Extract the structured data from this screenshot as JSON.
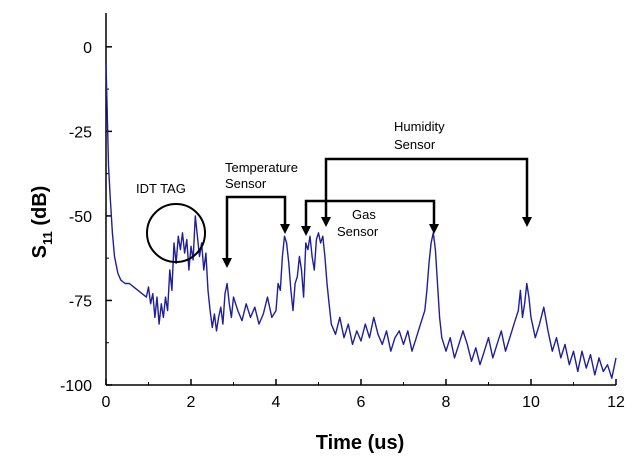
{
  "chart_data": {
    "type": "line",
    "xlabel": "Time (us)",
    "ylabel_main": "S",
    "ylabel_sub": "11",
    "ylabel_unit": " (dB)",
    "xlim": [
      0,
      12
    ],
    "ylim": [
      -100,
      10
    ],
    "xticks": [
      "0",
      "2",
      "4",
      "6",
      "8",
      "10",
      "12"
    ],
    "yticks": [
      "0",
      "-25",
      "-50",
      "-75",
      "-100"
    ],
    "grid": false,
    "series": [
      {
        "color": "#1f1f99",
        "points": [
          [
            0.0,
            -5
          ],
          [
            0.03,
            -20
          ],
          [
            0.06,
            -35
          ],
          [
            0.1,
            -45
          ],
          [
            0.15,
            -55
          ],
          [
            0.2,
            -62
          ],
          [
            0.28,
            -67
          ],
          [
            0.35,
            -69
          ],
          [
            0.45,
            -70
          ],
          [
            0.55,
            -70
          ],
          [
            0.65,
            -71
          ],
          [
            0.75,
            -72
          ],
          [
            0.85,
            -73
          ],
          [
            0.95,
            -74
          ],
          [
            1.0,
            -71
          ],
          [
            1.05,
            -76
          ],
          [
            1.1,
            -73
          ],
          [
            1.15,
            -80
          ],
          [
            1.2,
            -74
          ],
          [
            1.25,
            -82
          ],
          [
            1.3,
            -76
          ],
          [
            1.35,
            -80
          ],
          [
            1.4,
            -74
          ],
          [
            1.45,
            -78
          ],
          [
            1.5,
            -66
          ],
          [
            1.55,
            -72
          ],
          [
            1.6,
            -58
          ],
          [
            1.65,
            -64
          ],
          [
            1.7,
            -56
          ],
          [
            1.75,
            -60
          ],
          [
            1.8,
            -55
          ],
          [
            1.85,
            -61
          ],
          [
            1.9,
            -57
          ],
          [
            1.95,
            -66
          ],
          [
            2.0,
            -59
          ],
          [
            2.05,
            -63
          ],
          [
            2.1,
            -50
          ],
          [
            2.15,
            -56
          ],
          [
            2.2,
            -62
          ],
          [
            2.25,
            -58
          ],
          [
            2.3,
            -66
          ],
          [
            2.35,
            -61
          ],
          [
            2.4,
            -72
          ],
          [
            2.45,
            -78
          ],
          [
            2.5,
            -83
          ],
          [
            2.55,
            -79
          ],
          [
            2.6,
            -84
          ],
          [
            2.65,
            -80
          ],
          [
            2.7,
            -77
          ],
          [
            2.75,
            -82
          ],
          [
            2.8,
            -73
          ],
          [
            2.85,
            -70
          ],
          [
            2.9,
            -76
          ],
          [
            2.95,
            -80
          ],
          [
            3.0,
            -74
          ],
          [
            3.1,
            -78
          ],
          [
            3.2,
            -81
          ],
          [
            3.3,
            -76
          ],
          [
            3.4,
            -80
          ],
          [
            3.5,
            -77
          ],
          [
            3.6,
            -82
          ],
          [
            3.7,
            -79
          ],
          [
            3.8,
            -74
          ],
          [
            3.9,
            -80
          ],
          [
            4.0,
            -78
          ],
          [
            4.05,
            -70
          ],
          [
            4.1,
            -72
          ],
          [
            4.15,
            -62
          ],
          [
            4.2,
            -56
          ],
          [
            4.25,
            -58
          ],
          [
            4.3,
            -64
          ],
          [
            4.35,
            -72
          ],
          [
            4.4,
            -78
          ],
          [
            4.45,
            -70
          ],
          [
            4.5,
            -68
          ],
          [
            4.55,
            -62
          ],
          [
            4.6,
            -66
          ],
          [
            4.65,
            -74
          ],
          [
            4.7,
            -58
          ],
          [
            4.75,
            -60
          ],
          [
            4.8,
            -56
          ],
          [
            4.85,
            -62
          ],
          [
            4.9,
            -66
          ],
          [
            4.95,
            -57
          ],
          [
            5.0,
            -55
          ],
          [
            5.05,
            -58
          ],
          [
            5.1,
            -56
          ],
          [
            5.15,
            -62
          ],
          [
            5.2,
            -70
          ],
          [
            5.25,
            -76
          ],
          [
            5.3,
            -82
          ],
          [
            5.4,
            -85
          ],
          [
            5.5,
            -80
          ],
          [
            5.6,
            -86
          ],
          [
            5.7,
            -82
          ],
          [
            5.8,
            -88
          ],
          [
            5.9,
            -84
          ],
          [
            6.0,
            -87
          ],
          [
            6.1,
            -82
          ],
          [
            6.2,
            -86
          ],
          [
            6.3,
            -80
          ],
          [
            6.4,
            -85
          ],
          [
            6.5,
            -88
          ],
          [
            6.6,
            -84
          ],
          [
            6.7,
            -90
          ],
          [
            6.8,
            -86
          ],
          [
            6.9,
            -84
          ],
          [
            7.0,
            -88
          ],
          [
            7.1,
            -84
          ],
          [
            7.2,
            -90
          ],
          [
            7.3,
            -86
          ],
          [
            7.4,
            -82
          ],
          [
            7.5,
            -78
          ],
          [
            7.55,
            -72
          ],
          [
            7.6,
            -64
          ],
          [
            7.65,
            -58
          ],
          [
            7.7,
            -55
          ],
          [
            7.75,
            -60
          ],
          [
            7.8,
            -70
          ],
          [
            7.85,
            -80
          ],
          [
            7.9,
            -86
          ],
          [
            8.0,
            -90
          ],
          [
            8.1,
            -86
          ],
          [
            8.2,
            -92
          ],
          [
            8.3,
            -88
          ],
          [
            8.4,
            -84
          ],
          [
            8.5,
            -88
          ],
          [
            8.6,
            -93
          ],
          [
            8.7,
            -89
          ],
          [
            8.8,
            -94
          ],
          [
            8.9,
            -90
          ],
          [
            9.0,
            -86
          ],
          [
            9.1,
            -92
          ],
          [
            9.2,
            -88
          ],
          [
            9.3,
            -84
          ],
          [
            9.4,
            -90
          ],
          [
            9.5,
            -86
          ],
          [
            9.6,
            -82
          ],
          [
            9.7,
            -78
          ],
          [
            9.75,
            -72
          ],
          [
            9.8,
            -80
          ],
          [
            9.85,
            -76
          ],
          [
            9.9,
            -70
          ],
          [
            9.95,
            -74
          ],
          [
            10.0,
            -80
          ],
          [
            10.1,
            -86
          ],
          [
            10.2,
            -82
          ],
          [
            10.3,
            -77
          ],
          [
            10.4,
            -84
          ],
          [
            10.5,
            -90
          ],
          [
            10.6,
            -86
          ],
          [
            10.7,
            -92
          ],
          [
            10.8,
            -88
          ],
          [
            10.9,
            -94
          ],
          [
            11.0,
            -90
          ],
          [
            11.1,
            -96
          ],
          [
            11.2,
            -90
          ],
          [
            11.3,
            -95
          ],
          [
            11.4,
            -91
          ],
          [
            11.5,
            -97
          ],
          [
            11.6,
            -92
          ],
          [
            11.7,
            -96
          ],
          [
            11.8,
            -94
          ],
          [
            11.9,
            -98
          ],
          [
            12.0,
            -92
          ]
        ]
      }
    ],
    "annotations": [
      {
        "id": "idt",
        "lines": [
          "IDT TAG"
        ]
      },
      {
        "id": "temperature",
        "lines": [
          "Temperature",
          "Sensor"
        ]
      },
      {
        "id": "gas",
        "lines": [
          "Gas",
          "Sensor"
        ]
      },
      {
        "id": "humidity",
        "lines": [
          "Humidity",
          "Sensor"
        ]
      }
    ]
  }
}
